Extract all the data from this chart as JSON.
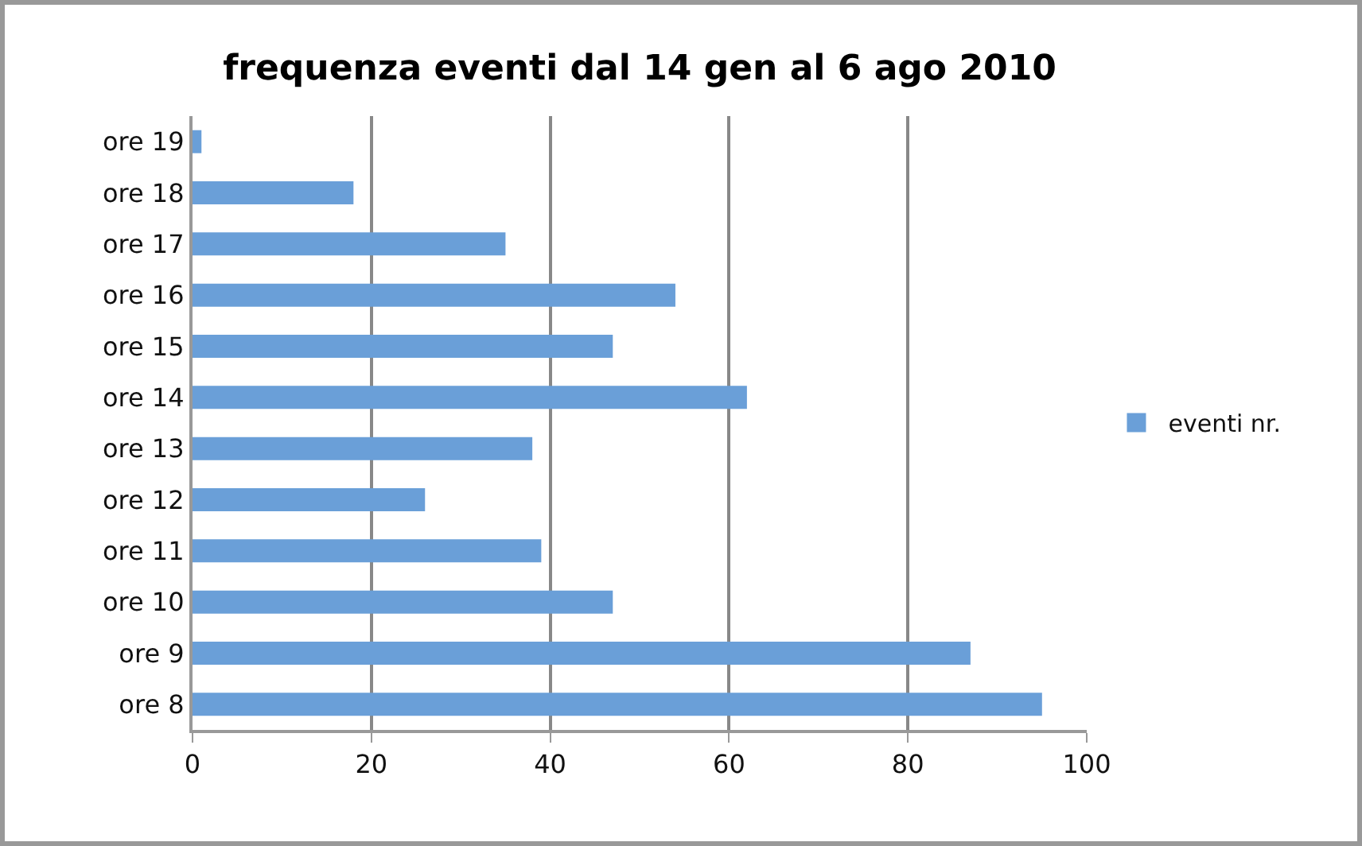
{
  "chart_data": {
    "type": "bar",
    "orientation": "horizontal",
    "title": "frequenza eventi dal 14 gen al 6 ago 2010",
    "categories": [
      "ore 19",
      "ore 18",
      "ore 17",
      "ore 16",
      "ore 15",
      "ore 14",
      "ore 13",
      "ore 12",
      "ore 11",
      "ore 10",
      "ore 9",
      "ore 8"
    ],
    "series": [
      {
        "name": "eventi nr.",
        "color": "#6a9fd8",
        "values": [
          1,
          18,
          35,
          54,
          47,
          62,
          38,
          26,
          39,
          47,
          87,
          95
        ]
      }
    ],
    "xlim": [
      0,
      100
    ],
    "xticks": [
      0,
      20,
      40,
      60,
      80,
      100
    ],
    "grid": "x",
    "legend": "right"
  }
}
